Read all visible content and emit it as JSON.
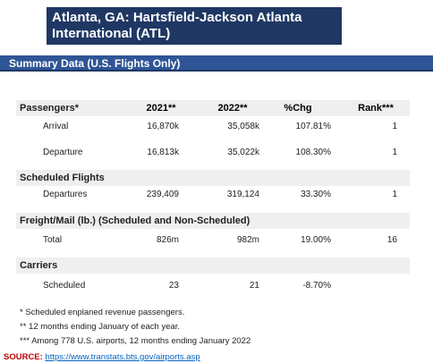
{
  "header": {
    "title_lines": [
      "Atlanta, GA: Hartsfield-Jackson Atlanta",
      "International (ATL)"
    ],
    "subtitle": "Summary Data (U.S. Flights Only)"
  },
  "table": {
    "sections": [
      {
        "label": "Passengers*",
        "columns": [
          "2021**",
          "2022**",
          "%Chg",
          "Rank***"
        ],
        "rows": [
          [
            "Arrival",
            "16,870k",
            "35,058k",
            "107.81%",
            "1"
          ],
          [
            "Departure",
            "16,813k",
            "35,022k",
            "108.30%",
            "1"
          ]
        ]
      },
      {
        "label": "Scheduled Flights",
        "rows": [
          [
            "Departures",
            "239,409",
            "319,124",
            "33.30%",
            "1"
          ]
        ]
      },
      {
        "label": "Freight/Mail (lb.) (Scheduled and Non-Scheduled)",
        "rows": [
          [
            "Total",
            "826m",
            "982m",
            "19.00%",
            "16"
          ]
        ]
      },
      {
        "label": "Carriers",
        "rows": [
          [
            "Scheduled",
            "23",
            "21",
            "-8.70%"
          ]
        ]
      }
    ]
  },
  "footnotes": [
    "* Scheduled enplaned revenue passengers.",
    "** 12 months ending January of each year.",
    "*** Among 778 U.S. airports, 12 months ending January 2022"
  ],
  "source": {
    "label": "SOURCE:",
    "url": "https://www.transtats.bts.gov/airports.asp"
  }
}
